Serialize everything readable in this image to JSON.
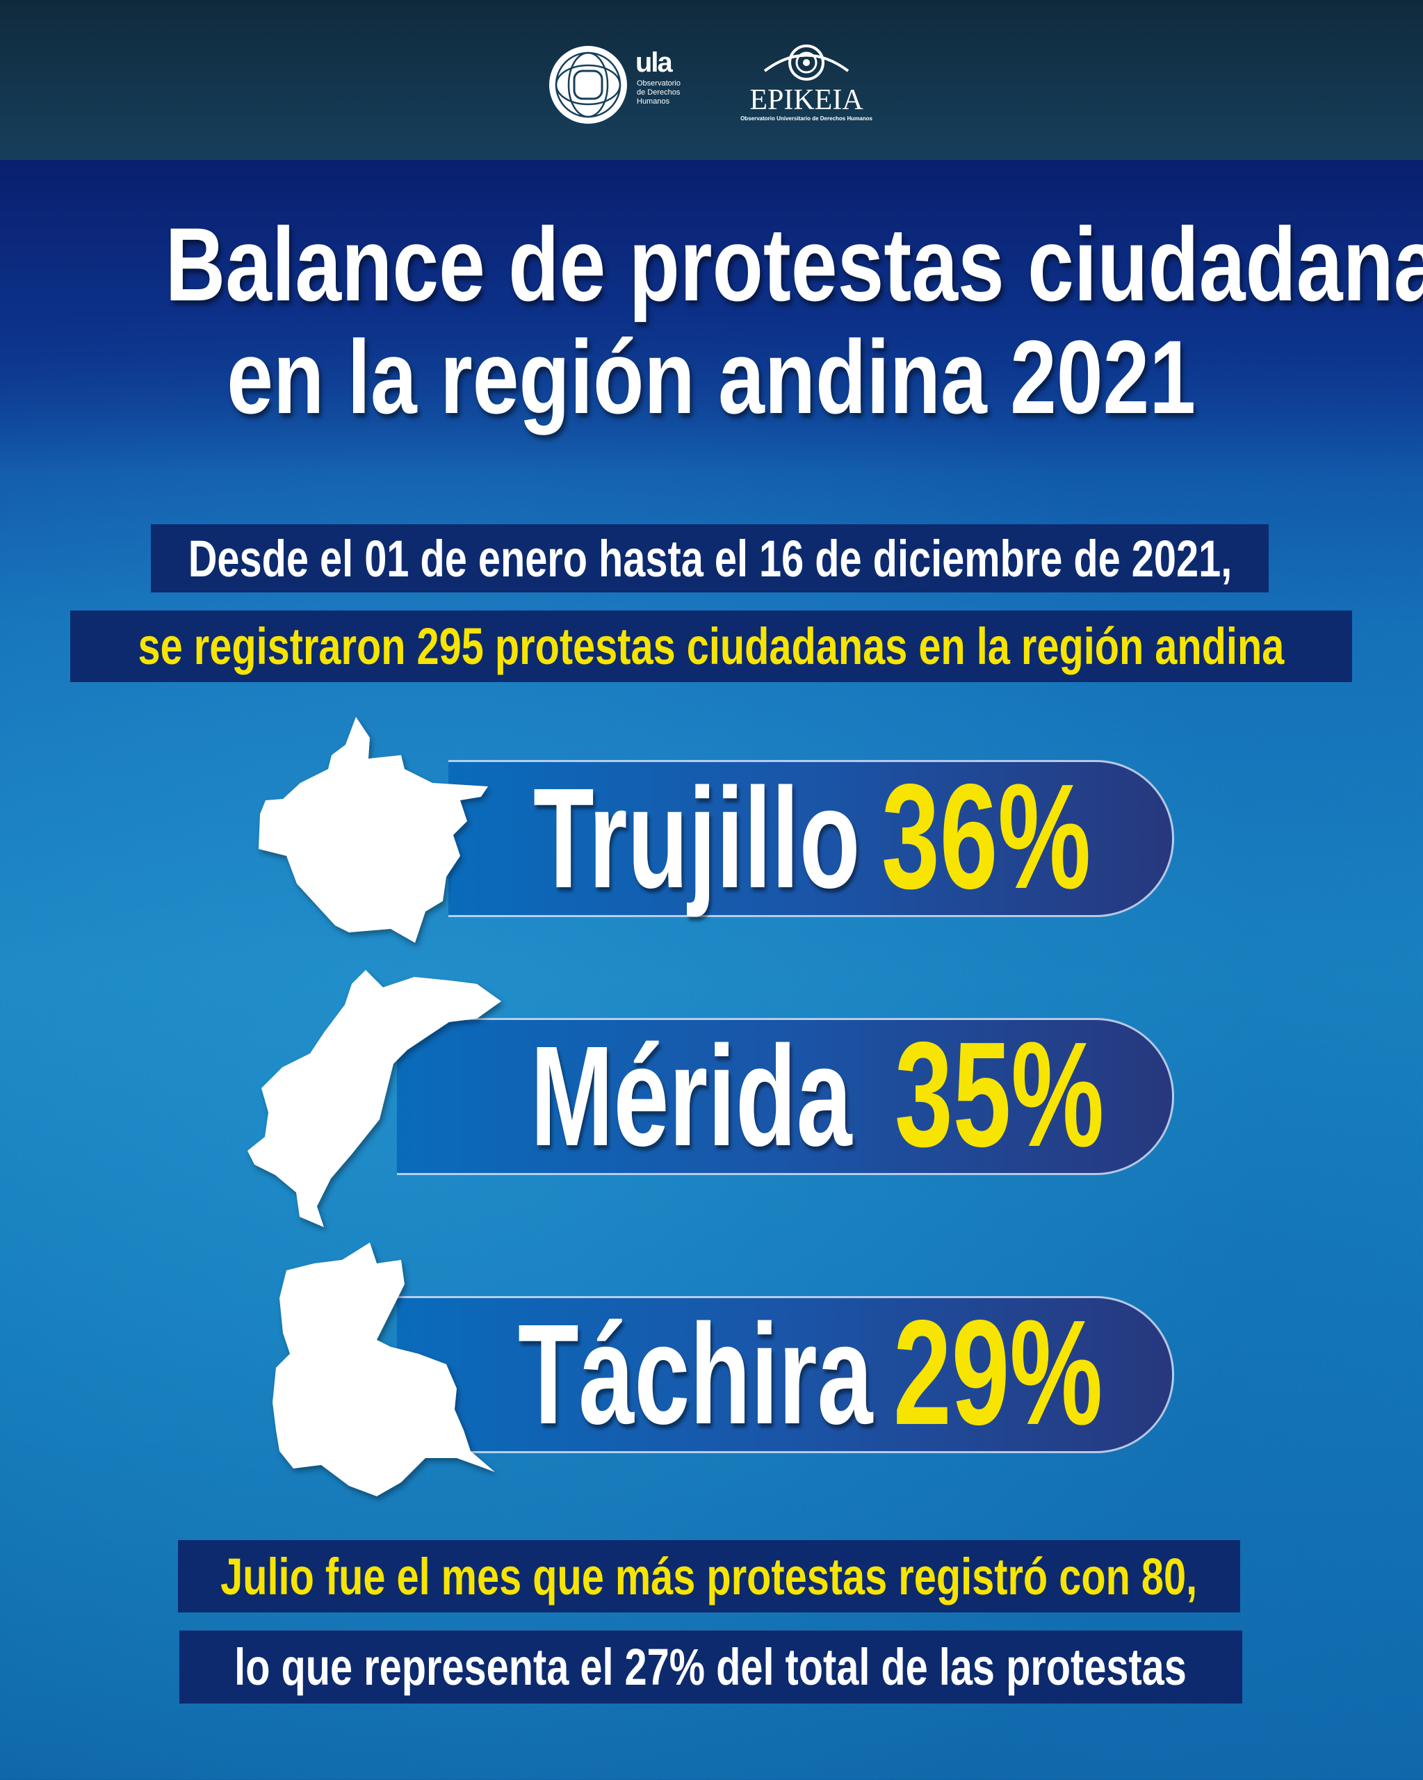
{
  "logos": {
    "ula": {
      "wordmark": "ula",
      "subtitle_lines": [
        "Observatorio",
        "de Derechos",
        "Humanos"
      ]
    },
    "epikeia": {
      "wordmark": "EPIKEIA",
      "subtitle": "Observatorio Universitario de  Derechos Humanos"
    }
  },
  "title": {
    "line1": "Balance de protestas ciudadanas",
    "line2": "en la región andina 2021"
  },
  "intro": {
    "line1": "Desde el 01 de enero hasta el 16 de diciembre de 2021,",
    "line2": "se registraron 295 protestas ciudadanas en la región andina"
  },
  "states": [
    {
      "name": "Trujillo",
      "percent_label": "36%",
      "percent": 36,
      "icon": "trujillo-map-icon"
    },
    {
      "name": "Mérida",
      "percent_label": "35%",
      "percent": 35,
      "icon": "merida-map-icon"
    },
    {
      "name": "Táchira",
      "percent_label": "29%",
      "percent": 29,
      "icon": "tachira-map-icon"
    }
  ],
  "footer": {
    "line1": "Julio fue el mes que más protestas registró con 80,",
    "line2": "lo que representa el 27% del total de las protestas"
  },
  "colors": {
    "highlight_yellow": "#f7e400",
    "box_navy": "#0d2a6e",
    "pill_blue": "#0a6bbb"
  }
}
